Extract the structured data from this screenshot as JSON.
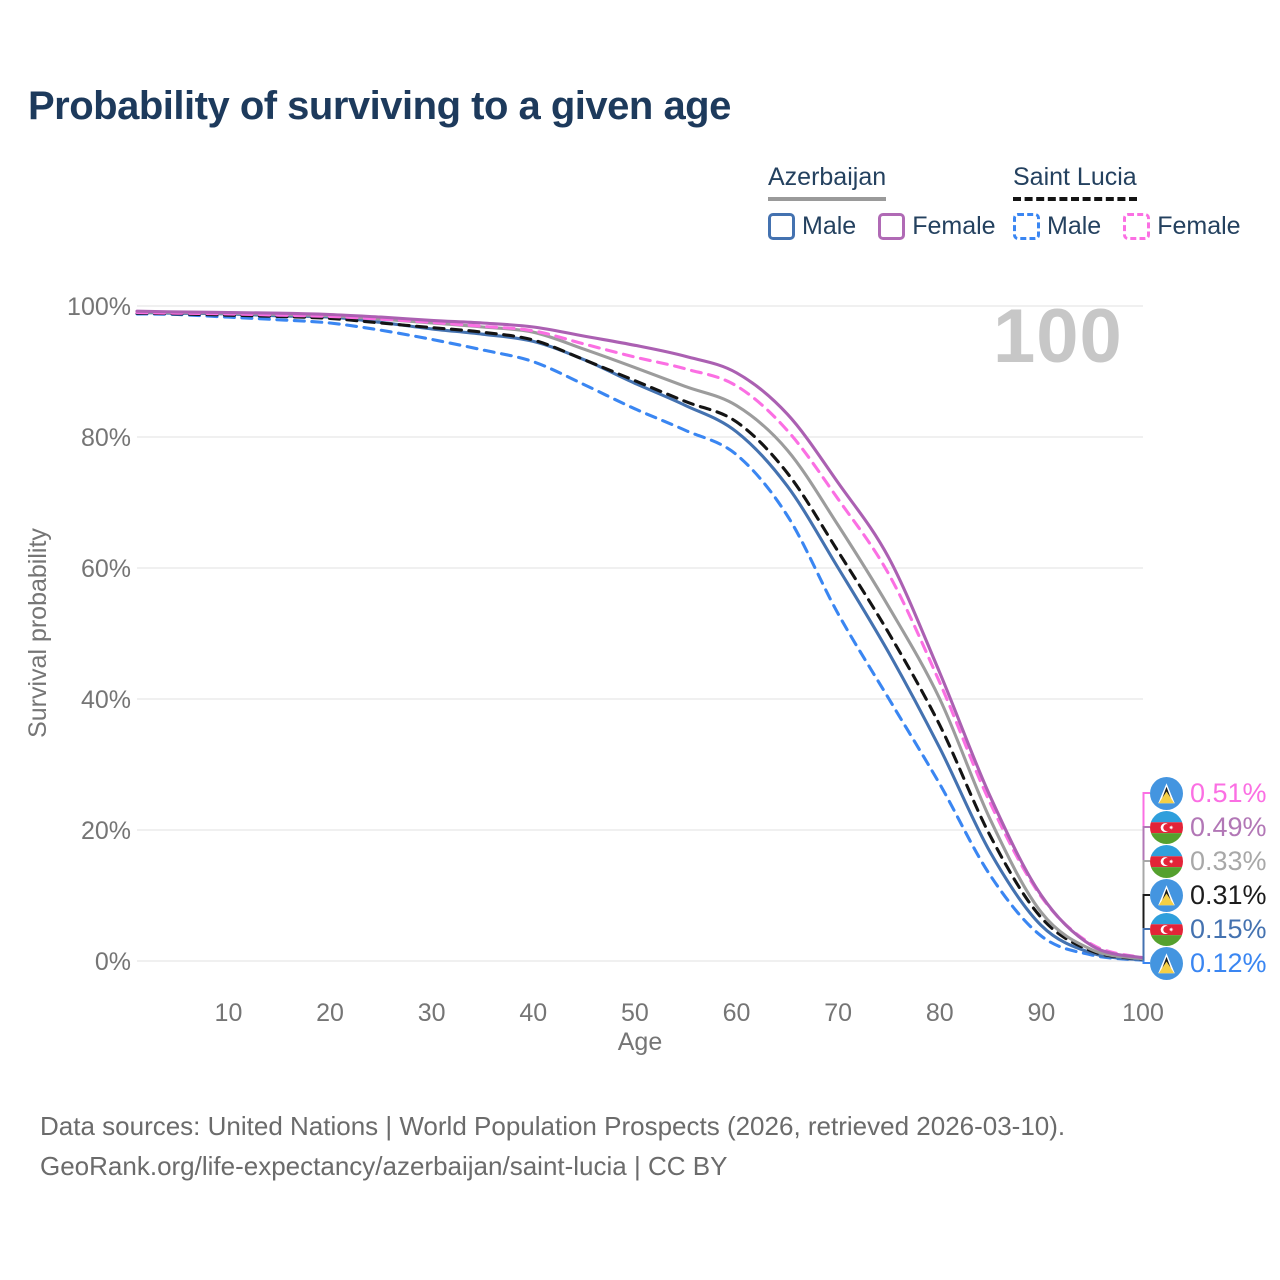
{
  "title": "Probability of surviving to a given age",
  "watermark_age": "100",
  "legend": {
    "groups": [
      {
        "country": "Azerbaijan",
        "underline_style": "solid",
        "underline_color": "#9a9a9a",
        "items": [
          {
            "label": "Male",
            "color": "#4472b0",
            "style": "solid"
          },
          {
            "label": "Female",
            "color": "#b06ab5",
            "style": "solid"
          }
        ]
      },
      {
        "country": "Saint Lucia",
        "underline_style": "dashed",
        "underline_color": "#141414",
        "items": [
          {
            "label": "Male",
            "color": "#3a86f2",
            "style": "dashed"
          },
          {
            "label": "Female",
            "color": "#fb6fe3",
            "style": "dashed"
          }
        ]
      }
    ]
  },
  "chart_data": {
    "type": "line",
    "title": "Probability of surviving to a given age",
    "xlabel": "Age",
    "ylabel": "Survival probability",
    "xlim": [
      1,
      100
    ],
    "ylim": [
      0,
      100
    ],
    "grid": "horizontal-only",
    "legend_position": "top-right",
    "x_ticks": [
      10,
      20,
      30,
      40,
      50,
      60,
      70,
      80,
      90,
      100
    ],
    "y_ticks": [
      0,
      20,
      40,
      60,
      80,
      100
    ],
    "y_tick_labels": [
      "0%",
      "20%",
      "40%",
      "60%",
      "80%",
      "100%"
    ],
    "ages": [
      1,
      5,
      10,
      15,
      20,
      25,
      30,
      35,
      40,
      45,
      50,
      55,
      60,
      65,
      70,
      75,
      80,
      85,
      90,
      95,
      100
    ],
    "series": [
      {
        "name": "Saint Lucia Male",
        "country": "Saint Lucia",
        "sex": "Male",
        "color": "#3a86f2",
        "dash": "dashed",
        "values": [
          98.8,
          98.7,
          98.3,
          97.9,
          97.4,
          96.3,
          94.9,
          93.3,
          91.5,
          88.0,
          84.3,
          81.0,
          77.3,
          68.0,
          53.0,
          40.0,
          27.0,
          13.0,
          3.8,
          0.9,
          0.12
        ]
      },
      {
        "name": "Azerbaijan Male",
        "country": "Azerbaijan",
        "sex": "Male",
        "color": "#4472b0",
        "dash": "solid",
        "values": [
          99.0,
          98.9,
          98.8,
          98.5,
          98.3,
          97.5,
          96.5,
          95.7,
          94.6,
          91.8,
          88.2,
          84.8,
          80.8,
          72.5,
          60.0,
          47.0,
          32.5,
          16.5,
          5.4,
          1.2,
          0.15
        ]
      },
      {
        "name": "Saint Lucia Both sexes",
        "country": "Saint Lucia",
        "sex": "Both",
        "color": "#141414",
        "dash": "dashed",
        "values": [
          98.9,
          98.8,
          98.6,
          98.4,
          98.1,
          97.4,
          96.7,
          96.0,
          94.8,
          91.8,
          88.6,
          85.4,
          82.3,
          74.5,
          62.5,
          50.0,
          36.0,
          19.0,
          6.6,
          1.5,
          0.31
        ]
      },
      {
        "name": "Azerbaijan Both sexes",
        "country": "Azerbaijan",
        "sex": "Both",
        "color": "#9c9c9c",
        "dash": "solid",
        "values": [
          99.1,
          99.0,
          98.9,
          98.7,
          98.5,
          98.0,
          97.4,
          96.8,
          96.0,
          93.4,
          90.6,
          87.7,
          84.8,
          78.0,
          66.5,
          54.0,
          40.0,
          21.5,
          7.4,
          1.7,
          0.33
        ]
      },
      {
        "name": "Saint Lucia Female",
        "country": "Saint Lucia",
        "sex": "Female",
        "color": "#fb6fe3",
        "dash": "dashed",
        "values": [
          99.0,
          98.9,
          98.8,
          98.6,
          98.4,
          98.0,
          97.5,
          96.9,
          96.2,
          94.2,
          92.2,
          90.4,
          87.8,
          81.0,
          70.5,
          59.0,
          42.5,
          24.0,
          9.8,
          2.5,
          0.51
        ]
      },
      {
        "name": "Azerbaijan Female",
        "country": "Azerbaijan",
        "sex": "Female",
        "color": "#ab60b2",
        "dash": "solid",
        "values": [
          99.2,
          99.1,
          99.0,
          98.9,
          98.7,
          98.3,
          97.8,
          97.4,
          96.8,
          95.4,
          94.0,
          92.3,
          89.8,
          83.5,
          73.0,
          61.5,
          44.0,
          25.0,
          10.0,
          2.3,
          0.49
        ]
      }
    ]
  },
  "end_labels": [
    {
      "value": "0.51%",
      "color": "#fb6fe3",
      "flag": "saint-lucia",
      "series": "Saint Lucia Female"
    },
    {
      "value": "0.49%",
      "color": "#b277b6",
      "flag": "azerbaijan",
      "series": "Azerbaijan Female"
    },
    {
      "value": "0.33%",
      "color": "#a8a8a8",
      "flag": "azerbaijan",
      "series": "Azerbaijan Both sexes"
    },
    {
      "value": "0.31%",
      "color": "#1c1c1c",
      "flag": "saint-lucia",
      "series": "Saint Lucia Both sexes"
    },
    {
      "value": "0.15%",
      "color": "#4472b0",
      "flag": "azerbaijan",
      "series": "Azerbaijan Male"
    },
    {
      "value": "0.12%",
      "color": "#3a86f2",
      "flag": "saint-lucia",
      "series": "Saint Lucia Male"
    }
  ],
  "footer": {
    "line1": "Data sources: United Nations | World Population Prospects (2026, retrieved 2026-03-10).",
    "line2": "GeoRank.org/life-expectancy/azerbaijan/saint-lucia | CC BY"
  }
}
